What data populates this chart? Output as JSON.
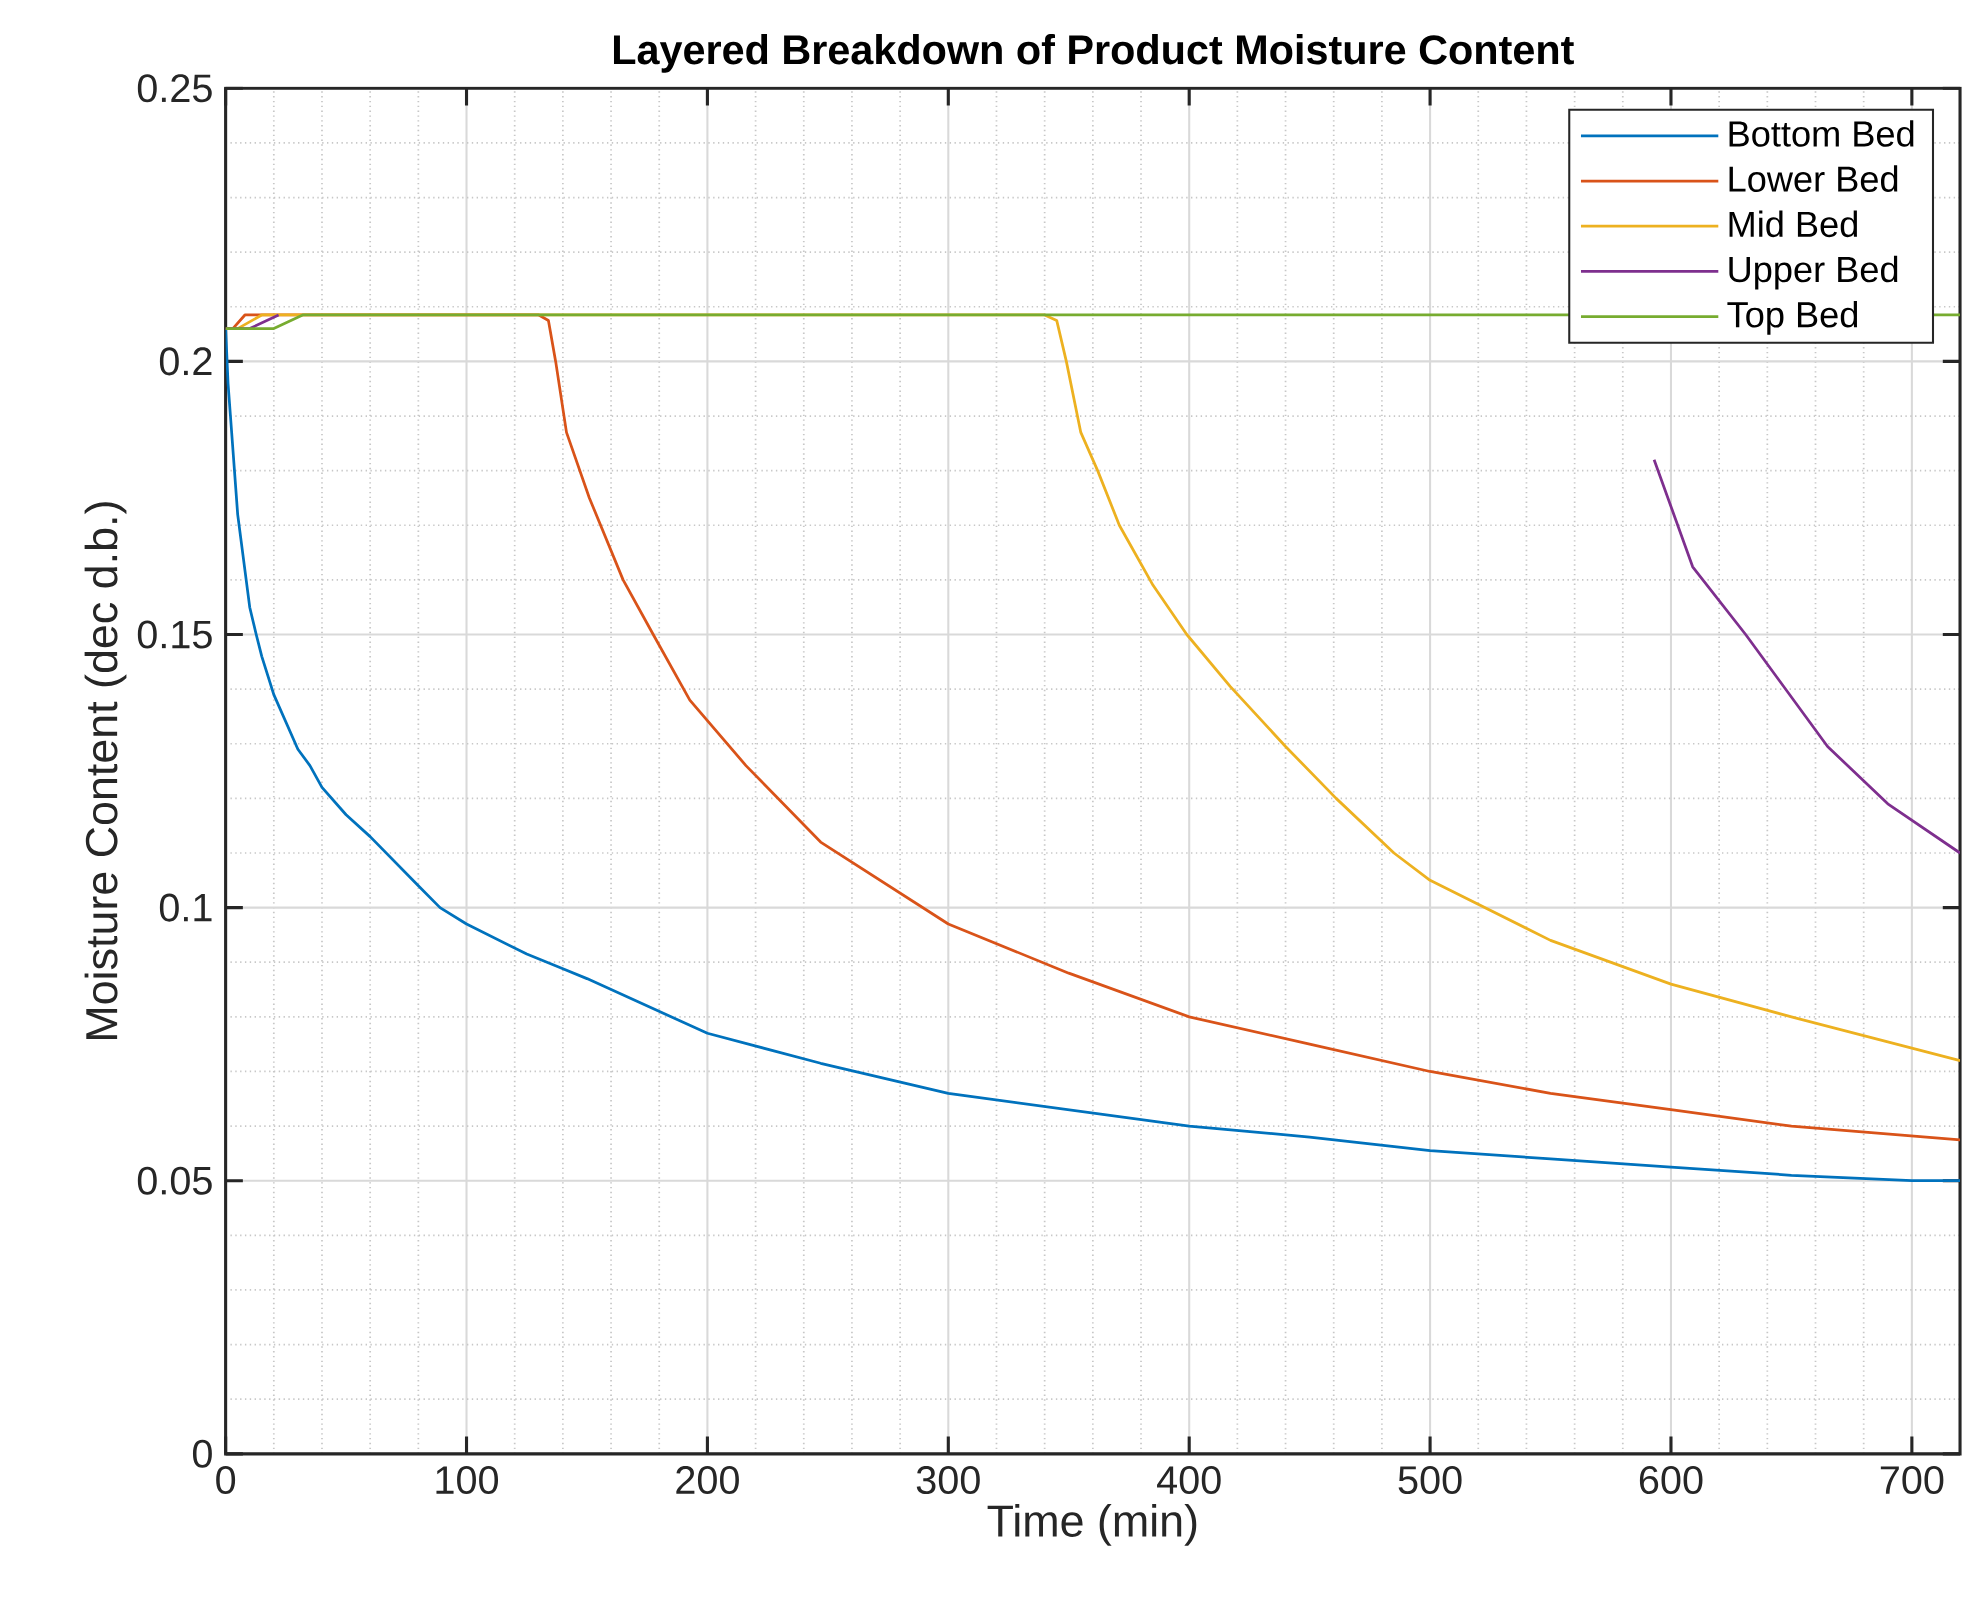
{
  "chart_data": {
    "type": "line",
    "title": "Layered Breakdown of Product Moisture Content",
    "xlabel": "Time (min)",
    "ylabel": "Moisture Content (dec d.b.)",
    "xlim": [
      0,
      720
    ],
    "xticks": [
      0,
      100,
      200,
      300,
      400,
      500,
      600,
      700
    ],
    "ylim": [
      0,
      0.25
    ],
    "yticks": [
      0,
      0.05,
      0.1,
      0.15,
      0.2,
      0.25
    ],
    "grid": true,
    "legend": "top right",
    "line_style": "solid",
    "marker": "none",
    "series": [
      {
        "name": "Bottom Bed",
        "color": "#0072bd",
        "x": [
          0,
          1,
          2,
          5,
          10,
          12.7,
          15,
          20,
          30,
          35,
          40,
          50,
          60,
          80,
          89,
          100,
          125,
          139,
          150,
          200,
          247,
          300,
          350,
          400,
          450,
          500,
          550,
          600,
          650,
          700,
          720
        ],
        "values": [
          0.206,
          0.196,
          0.19,
          0.172,
          0.155,
          0.15,
          0.146,
          0.139,
          0.129,
          0.126,
          0.122,
          0.117,
          0.113,
          0.104,
          0.1,
          0.097,
          0.0915,
          0.089,
          0.087,
          0.077,
          0.0715,
          0.066,
          0.063,
          0.06,
          0.058,
          0.0555,
          0.054,
          0.0525,
          0.051,
          0.05,
          0.05
        ]
      },
      {
        "name": "Lower Bed",
        "color": "#d95319",
        "x": [
          0,
          3,
          8,
          130,
          134,
          137,
          141.5,
          151,
          165,
          177.5,
          192.7,
          216,
          247,
          300,
          350,
          400,
          450,
          500,
          550,
          600,
          650,
          720
        ],
        "values": [
          0.206,
          0.206,
          0.2085,
          0.2085,
          0.2075,
          0.2,
          0.187,
          0.175,
          0.16,
          0.15,
          0.138,
          0.126,
          0.112,
          0.097,
          0.088,
          0.08,
          0.075,
          0.07,
          0.066,
          0.063,
          0.06,
          0.0575
        ]
      },
      {
        "name": "Mid Bed",
        "color": "#edb120",
        "x": [
          0,
          5,
          15,
          340,
          345,
          349,
          355,
          362,
          371,
          385,
          399,
          417,
          440,
          461,
          485,
          500,
          550,
          600,
          650,
          720
        ],
        "values": [
          0.206,
          0.206,
          0.2085,
          0.2085,
          0.2075,
          0.2,
          0.187,
          0.18,
          0.17,
          0.159,
          0.15,
          0.1405,
          0.1295,
          0.12,
          0.11,
          0.105,
          0.094,
          0.086,
          0.08,
          0.072
        ]
      },
      {
        "name": "Upper Bed",
        "color": "#7e2f8e",
        "x": [
          0,
          10,
          22,
          550,
          593,
          609,
          631,
          665,
          690,
          720
        ],
        "values": [
          0.206,
          0.206,
          0.2085,
          null,
          0.182,
          0.1624,
          0.15,
          0.1295,
          0.119,
          0.11
        ]
      },
      {
        "name": "Top Bed",
        "color": "#77ac30",
        "x": [
          0,
          20,
          32,
          500,
          720
        ],
        "values": [
          0.206,
          0.206,
          0.2085,
          0.2085,
          0.2085
        ]
      }
    ]
  }
}
